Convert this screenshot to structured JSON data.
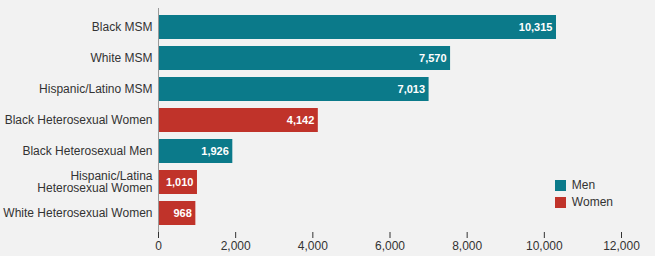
{
  "chart_data": {
    "type": "bar",
    "orientation": "horizontal",
    "categories": [
      "Black MSM",
      "White MSM",
      "Hispanic/Latino MSM",
      "Black Heterosexual Women",
      "Black Heterosexual Men",
      "Hispanic/Latina\nHeterosexual Women",
      "White Heterosexual Women"
    ],
    "series": [
      {
        "name": "Men",
        "color": "#0b7a8a",
        "values": [
          10315,
          7570,
          7013,
          null,
          1926,
          null,
          null
        ],
        "value_labels": [
          "10,315",
          "7,570",
          "7,013",
          null,
          "1,926",
          null,
          null
        ]
      },
      {
        "name": "Women",
        "color": "#c0332a",
        "values": [
          null,
          null,
          null,
          4142,
          null,
          1010,
          968
        ],
        "value_labels": [
          null,
          null,
          null,
          "4,142",
          null,
          "1,010",
          "968"
        ]
      }
    ],
    "xlim": [
      0,
      12000
    ],
    "xticks": [
      0,
      {
        "value": 2000,
        "label": "2,000"
      },
      {
        "value": 4000,
        "label": "4,000"
      },
      {
        "value": 6000,
        "label": "6,000"
      },
      {
        "value": 8000,
        "label": "8,000"
      },
      {
        "value": 10000,
        "label": "10,000"
      },
      {
        "value": 12000,
        "label": "12,000"
      }
    ],
    "grid": false,
    "data_labels": true,
    "legend": "bottom-right"
  }
}
